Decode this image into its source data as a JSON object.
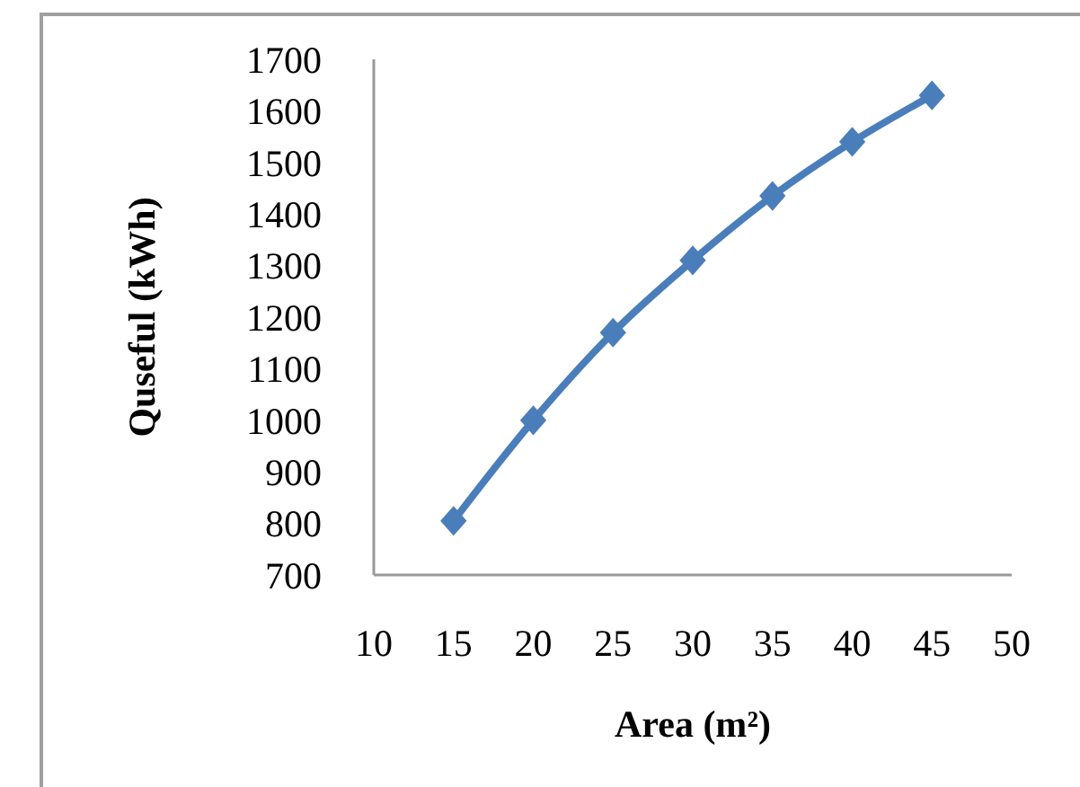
{
  "chart_data": {
    "type": "line",
    "xlabel": "Area (m²)",
    "ylabel": "Quseful (kWh)",
    "x": [
      15,
      20,
      25,
      30,
      35,
      40,
      45
    ],
    "series": [
      {
        "color": "#4a7ebb",
        "values": [
          805,
          1000,
          1170,
          1310,
          1435,
          1540,
          1630
        ]
      }
    ],
    "xlim": [
      10,
      50
    ],
    "xticks": [
      10,
      15,
      20,
      25,
      30,
      35,
      40,
      45,
      50
    ],
    "ylim": [
      700,
      1700
    ],
    "yticks": [
      700,
      800,
      900,
      1000,
      1100,
      1200,
      1300,
      1400,
      1500,
      1600,
      1700
    ],
    "marker": "diamond",
    "grid": false
  }
}
